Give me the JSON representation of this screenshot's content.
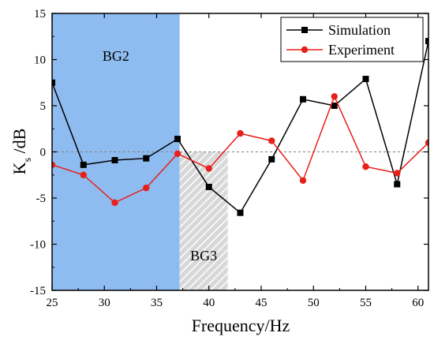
{
  "chart_data": {
    "type": "line",
    "xlabel": "Frequency/Hz",
    "ylabel": {
      "main": "K",
      "sub": "s",
      "suffix": " /dB"
    },
    "xlim": [
      25,
      61
    ],
    "ylim": [
      -15,
      15
    ],
    "x_ticks": [
      25,
      30,
      35,
      40,
      45,
      50,
      55,
      60
    ],
    "y_ticks": [
      -15,
      -10,
      -5,
      0,
      5,
      10,
      15
    ],
    "grid": false,
    "legend_position": "top-right",
    "reference_line": {
      "y": 0,
      "style": "dashed",
      "color": "#808080"
    },
    "bands": [
      {
        "label": "BG2",
        "x_start": 25,
        "x_end": 37.2,
        "y_start": -15,
        "y_end": 15,
        "fill": "#8ebcf0",
        "pattern": "solid"
      },
      {
        "label": "BG3",
        "x_start": 37.2,
        "x_end": 41.8,
        "y_start": -15,
        "y_end": 0,
        "fill": "#c8c8c8",
        "pattern": "hatched"
      }
    ],
    "series": [
      {
        "name": "Simulation",
        "color": "#000000",
        "marker": "square",
        "x": [
          25,
          28,
          31,
          34,
          37,
          40,
          43,
          46,
          49,
          52,
          55,
          58,
          61
        ],
        "y": [
          7.5,
          -1.4,
          -0.9,
          -0.7,
          1.4,
          -3.8,
          -6.6,
          -0.8,
          5.7,
          5.0,
          7.9,
          -3.5,
          12.0
        ]
      },
      {
        "name": "Experiment",
        "color": "#e8201c",
        "marker": "circle",
        "x": [
          25,
          28,
          31,
          34,
          37,
          40,
          43,
          46,
          49,
          52,
          55,
          58,
          61
        ],
        "y": [
          -1.4,
          -2.5,
          -5.5,
          -3.9,
          -0.2,
          -1.8,
          2.0,
          1.2,
          -3.1,
          6.0,
          -1.6,
          -2.3,
          1.0
        ]
      }
    ]
  }
}
